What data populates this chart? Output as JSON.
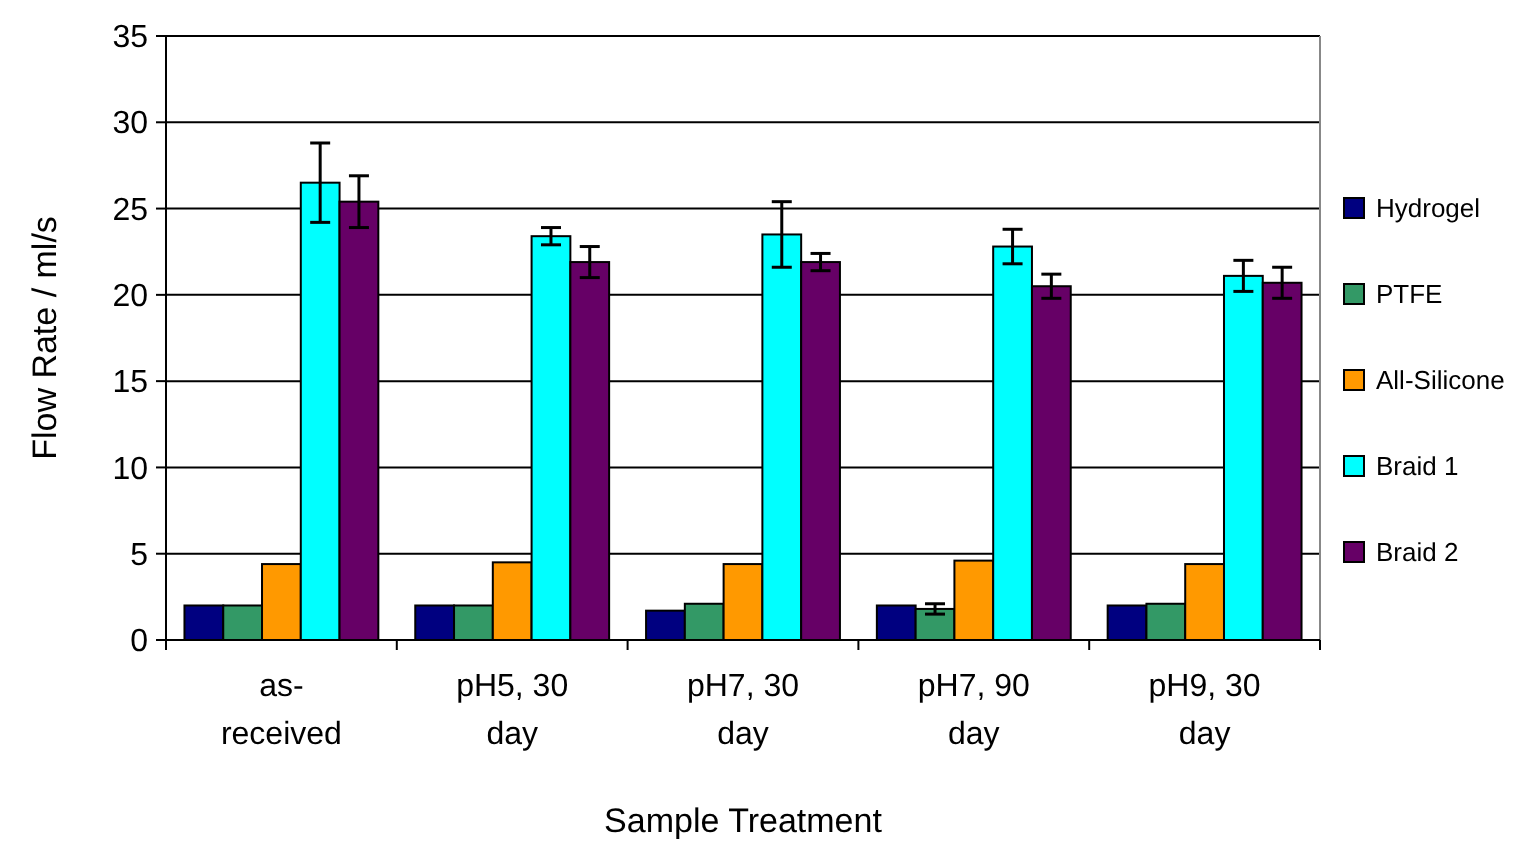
{
  "chart_data": {
    "type": "bar",
    "xlabel": "Sample Treatment",
    "ylabel": "Flow Rate / ml/s",
    "categories": [
      "as-received",
      "pH5, 30 day",
      "pH7, 30 day",
      "pH7, 90 day",
      "pH9, 30 day"
    ],
    "series": [
      {
        "name": "Hydrogel",
        "color": "#000080",
        "values": [
          2.0,
          2.0,
          1.7,
          2.0,
          2.0
        ]
      },
      {
        "name": "PTFE",
        "color": "#339966",
        "values": [
          2.0,
          2.0,
          2.1,
          1.8,
          2.1
        ],
        "errors": [
          null,
          null,
          null,
          0.3,
          null
        ]
      },
      {
        "name": "All-Silicone",
        "color": "#ff9900",
        "values": [
          4.4,
          4.5,
          4.4,
          4.6,
          4.4
        ]
      },
      {
        "name": "Braid 1",
        "color": "#00ffff",
        "values": [
          26.5,
          23.4,
          23.5,
          22.8,
          21.1
        ],
        "errors": [
          2.3,
          0.5,
          1.9,
          1.0,
          0.9
        ]
      },
      {
        "name": "Braid 2",
        "color": "#660066",
        "values": [
          25.4,
          21.9,
          21.9,
          20.5,
          20.7
        ],
        "errors": [
          1.5,
          0.9,
          0.5,
          0.7,
          0.9
        ]
      }
    ],
    "ylim": [
      0,
      35
    ],
    "yticks": [
      0,
      5,
      10,
      15,
      20,
      25,
      30,
      35
    ],
    "grid": "y",
    "legend": "right"
  }
}
